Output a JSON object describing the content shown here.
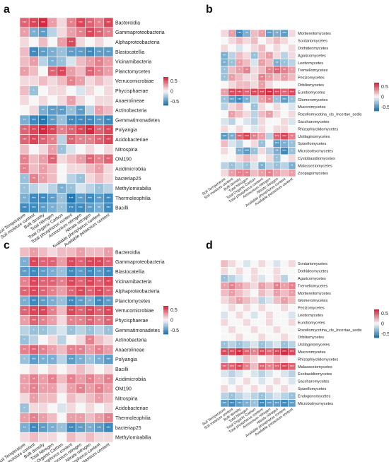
{
  "chart_data": [
    {
      "panel": "a",
      "type": "heatmap",
      "legend": {
        "ticks": [
          "0.5",
          "0",
          "-0.5"
        ]
      },
      "columns": [
        "Soil Temperature",
        "Soil moisture content",
        "Bulk density",
        "Total Nitrogen",
        "Total Organic Carbon",
        "Total phosphorus content",
        "Ammonium nitrogen",
        "Nitrate nitrogen",
        "Available phosphorus content",
        "Available potassium content"
      ],
      "rows": [
        "Bacteroidia",
        "Gammaproteobacteria",
        "Alphaproteobacteria",
        "Blastocatellia",
        "Vicinamibacteria",
        "Planctomycetes",
        "Verrucomicrobiae",
        "Phycisphaerae",
        "Anaerolineae",
        "Actinobacteria",
        "Gemmatimonadetes",
        "Polyangia",
        "Acidobacteriae",
        "Nitrospiria",
        "OM190",
        "Acidimicrobiia",
        "bacteriap25",
        "Methylomirabilia",
        "Thermoleophilia",
        "Bacilli"
      ],
      "values": [
        [
          0.5,
          0.6,
          0.7,
          0.3,
          0.1,
          0.4,
          0.6,
          0.5,
          0.4,
          0.6
        ],
        [
          0.3,
          -0.4,
          -0.5,
          -0.2,
          0.1,
          0.3,
          0.4,
          0.6,
          0.5,
          0.4
        ],
        [
          0.1,
          0.0,
          0.2,
          0.0,
          0.3,
          0.6,
          0.1,
          0.0,
          0.1,
          0.0
        ],
        [
          0.2,
          -0.6,
          -0.5,
          -0.4,
          -0.3,
          -0.5,
          -0.5,
          -0.6,
          -0.5,
          -0.5
        ],
        [
          0.2,
          0.3,
          -0.2,
          -0.4,
          -0.3,
          -0.1,
          0.2,
          0.3,
          0.4,
          0.3
        ],
        [
          0.3,
          0.2,
          0.0,
          0.5,
          0.6,
          0.3,
          0.2,
          0.5,
          0.4,
          0.3
        ],
        [
          0.1,
          0.1,
          0.2,
          0.1,
          0.2,
          0.4,
          0.3,
          0.1,
          0.2,
          0.1
        ],
        [
          0.2,
          -0.3,
          0.0,
          0.1,
          0.1,
          0.0,
          -0.1,
          0.1,
          0.0,
          0.1
        ],
        [
          0.1,
          0.0,
          0.1,
          0.0,
          0.1,
          0.3,
          0.1,
          0.0,
          0.1,
          0.1
        ],
        [
          0.0,
          0.1,
          -0.4,
          -0.5,
          -0.5,
          -0.3,
          -0.5,
          -0.2,
          0.3,
          0.2
        ],
        [
          -0.4,
          -0.6,
          -0.7,
          -0.5,
          -0.3,
          -0.6,
          -0.6,
          -0.6,
          -0.5,
          -0.6
        ],
        [
          0.5,
          0.6,
          0.7,
          0.6,
          0.4,
          0.5,
          0.6,
          0.7,
          0.5,
          0.6
        ],
        [
          0.5,
          0.6,
          0.5,
          0.4,
          -0.2,
          0.5,
          0.4,
          0.4,
          0.5,
          0.6
        ],
        [
          0.2,
          0.0,
          0.1,
          0.3,
          -0.3,
          -0.1,
          0.0,
          0.1,
          0.0,
          0.1
        ],
        [
          0.4,
          0.2,
          0.3,
          0.5,
          0.1,
          0.2,
          0.3,
          0.5,
          0.4,
          0.5
        ],
        [
          0.4,
          0.2,
          0.3,
          0.2,
          0.0,
          0.1,
          0.1,
          0.2,
          0.3,
          0.1
        ],
        [
          -0.3,
          0.4,
          0.3,
          0.2,
          0.0,
          -0.2,
          -0.3,
          0.1,
          0.2,
          0.1
        ],
        [
          -0.3,
          -0.2,
          -0.1,
          -0.2,
          -0.4,
          -0.3,
          -0.1,
          -0.2,
          -0.3,
          -0.2
        ],
        [
          -0.4,
          -0.6,
          -0.6,
          -0.5,
          -0.3,
          -0.7,
          -0.5,
          -0.6,
          -0.5,
          -0.6
        ],
        [
          -0.6,
          -0.6,
          -0.5,
          -0.4,
          -0.3,
          -0.6,
          -0.6,
          -0.5,
          -0.4,
          -0.6
        ]
      ]
    },
    {
      "panel": "b",
      "type": "heatmap",
      "legend": {
        "ticks": [
          "0.5",
          "0",
          "-0.5"
        ]
      },
      "columns": [
        "Soil Temperature",
        "Soil moisture content",
        "Bulk density",
        "Total Nitrogen",
        "Total Organic Carbon",
        "Total phosphorus content",
        "Ammonium nitrogen",
        "Nitrate nitrogen",
        "Available phosphorus content",
        "Available potassium content"
      ],
      "rows": [
        "Mortierellomycetes",
        "Sordariomycetes",
        "Dothideomycetes",
        "Agaricomycetes",
        "Leotiomycetes",
        "Tremellomycetes",
        "Pezizomycetes",
        "Orbiliomycetes",
        "Eurotiomycetes",
        "Glomeromycetes",
        "Mucoromycetes",
        "Rozellomycotina_cls_Incertae_sedis",
        "Saccharomycetes",
        "Rhizophlyctidomycetes",
        "Ustilaginomycetes",
        "Spizellomycetes",
        "Microbotryomycetes",
        "Cystobasidiomycetes",
        "Malasseziomycetes",
        "Zoopagomycetes"
      ],
      "values": [
        [
          0.1,
          0.3,
          -0.6,
          -0.4,
          0.2,
          0.3,
          -0.5,
          -0.4,
          -0.5,
          0.1
        ],
        [
          0.0,
          0.1,
          0.2,
          0.1,
          0.2,
          0.0,
          0.1,
          0.2,
          0.1,
          0.0
        ],
        [
          0.1,
          0.0,
          -0.1,
          0.0,
          0.1,
          0.2,
          0.0,
          0.1,
          0.0,
          0.1
        ],
        [
          -0.4,
          -0.2,
          0.2,
          0.1,
          -0.3,
          0.2,
          0.3,
          0.1,
          -0.2,
          0.1
        ],
        [
          -0.4,
          -0.3,
          0.3,
          0.2,
          -0.1,
          0.3,
          0.2,
          -0.4,
          -0.3,
          -0.2
        ],
        [
          -0.3,
          0.2,
          0.3,
          0.4,
          0.1,
          0.2,
          0.4,
          0.5,
          0.4,
          0.3
        ],
        [
          -0.3,
          0.3,
          0.2,
          0.1,
          0.1,
          0.4,
          0.3,
          0.2,
          0.3,
          0.2
        ],
        [
          0.0,
          0.1,
          0.2,
          0.2,
          0.1,
          0.3,
          0.1,
          0.0,
          0.0,
          0.0
        ],
        [
          0.3,
          0.6,
          0.6,
          0.5,
          0.6,
          0.6,
          0.7,
          0.6,
          0.5,
          0.6
        ],
        [
          -0.3,
          -0.5,
          -0.6,
          -0.4,
          -0.2,
          0.3,
          0.4,
          -0.3,
          -0.5,
          -0.3
        ],
        [
          -0.2,
          0.1,
          0.2,
          0.0,
          -0.3,
          0.1,
          0.0,
          0.1,
          0.0,
          -0.1
        ],
        [
          0.0,
          0.3,
          0.2,
          0.1,
          -0.2,
          0.2,
          0.3,
          0.1,
          0.0,
          0.1
        ],
        [
          -0.1,
          -0.2,
          0.0,
          -0.1,
          -0.2,
          0.1,
          0.0,
          0.0,
          0.1,
          -0.1
        ],
        [
          0.1,
          0.0,
          0.1,
          0.0,
          -0.1,
          0.1,
          0.0,
          0.1,
          0.1,
          0.0
        ],
        [
          -0.5,
          -0.4,
          0.5,
          0.6,
          0.4,
          0.3,
          -0.2,
          0.5,
          0.6,
          0.4
        ],
        [
          0.2,
          -0.1,
          -0.2,
          0.0,
          0.1,
          -0.3,
          0.0,
          -0.5,
          -0.4,
          -0.3
        ],
        [
          0.1,
          0.0,
          -0.4,
          -0.5,
          -0.3,
          0.1,
          -0.2,
          -0.4,
          -0.6,
          -0.3
        ],
        [
          0.0,
          0.0,
          0.1,
          0.2,
          0.1,
          0.0,
          0.1,
          -0.3,
          0.0,
          0.1
        ],
        [
          -0.2,
          -0.3,
          -0.2,
          -0.3,
          -0.1,
          -0.4,
          -0.2,
          -0.3,
          -0.2,
          -0.4
        ],
        [
          0.1,
          0.3,
          0.4,
          0.4,
          0.2,
          0.3,
          0.4,
          0.3,
          0.2,
          0.3
        ]
      ]
    },
    {
      "panel": "c",
      "type": "heatmap",
      "legend": {
        "ticks": [
          "0.5",
          "0",
          "-0.5"
        ]
      },
      "columns": [
        "Soil Temperature",
        "Soil moisture content",
        "Bulk density",
        "Total Nitrogen",
        "Total Organic Carbon",
        "Total phosphorus content",
        "Ammonium nitrogen",
        "Nitrate nitrogen",
        "Available phosphorus content",
        "Available potassium content"
      ],
      "rows": [
        "Bacteroidia",
        "Gammaproteobacteria",
        "Blastocatellia",
        "Vicinamibacteria",
        "Alphaproteobacteria",
        "Planctomycetes",
        "Verrucomicrobiae",
        "Phycisphaerae",
        "Gemmatimonadetes",
        "Actinobacteria",
        "Anaerolineae",
        "Polyangia",
        "Bacilli",
        "Acidimicrobiia",
        "OM190",
        "Nitrospiria",
        "Acidobacteriae",
        "Thermoleophilia",
        "bacteriap25",
        "Methylomirabilia"
      ],
      "values": [
        [
          0.2,
          0.3,
          0.2,
          0.1,
          0.2,
          0.2,
          0.3,
          0.2,
          0.2,
          0.3
        ],
        [
          -0.4,
          0.6,
          0.5,
          0.5,
          0.3,
          0.6,
          0.5,
          0.6,
          0.6,
          0.5
        ],
        [
          -0.5,
          -0.6,
          -0.5,
          -0.4,
          -0.3,
          -0.6,
          -0.5,
          -0.6,
          -0.5,
          -0.6
        ],
        [
          0.4,
          0.6,
          0.5,
          0.5,
          0.4,
          0.6,
          0.5,
          0.6,
          0.5,
          0.6
        ],
        [
          0.5,
          0.6,
          0.5,
          0.4,
          0.3,
          0.5,
          0.6,
          0.5,
          0.6,
          0.5
        ],
        [
          -0.4,
          -0.6,
          -0.5,
          -0.4,
          -0.3,
          -0.6,
          -0.5,
          -0.4,
          -0.6,
          -0.5
        ],
        [
          0.5,
          0.6,
          0.6,
          0.4,
          0.2,
          0.6,
          0.5,
          0.6,
          0.5,
          0.6
        ],
        [
          0.3,
          0.5,
          0.4,
          0.3,
          0.1,
          0.4,
          0.4,
          0.5,
          0.4,
          0.5
        ],
        [
          -0.2,
          -0.3,
          -0.3,
          -0.2,
          -0.1,
          -0.3,
          -0.2,
          -0.3,
          -0.2,
          -0.3
        ],
        [
          -0.3,
          -0.2,
          0.0,
          0.1,
          -0.2,
          0.0,
          0.1,
          0.4,
          0.2,
          0.1
        ],
        [
          0.4,
          0.5,
          0.4,
          0.3,
          0.2,
          0.4,
          0.4,
          0.3,
          0.4,
          0.3
        ],
        [
          -0.3,
          -0.5,
          -0.4,
          -0.4,
          -0.2,
          -0.5,
          -0.4,
          -0.3,
          -0.4,
          -0.5
        ],
        [
          0.0,
          0.1,
          0.0,
          0.1,
          0.0,
          0.1,
          0.2,
          0.1,
          0.0,
          0.1
        ],
        [
          0.3,
          0.4,
          0.3,
          0.4,
          0.2,
          0.4,
          0.3,
          0.4,
          0.3,
          0.4
        ],
        [
          0.3,
          0.4,
          0.3,
          0.3,
          0.1,
          0.3,
          0.4,
          0.3,
          0.4,
          0.3
        ],
        [
          0.1,
          0.3,
          0.2,
          0.2,
          0.0,
          0.2,
          0.1,
          0.2,
          0.3,
          0.2
        ],
        [
          -0.3,
          0.1,
          0.1,
          0.0,
          -0.1,
          0.1,
          0.0,
          0.1,
          0.0,
          0.1
        ],
        [
          0.3,
          0.4,
          0.3,
          0.2,
          0.0,
          0.3,
          0.3,
          0.2,
          0.3,
          0.4
        ],
        [
          -0.4,
          -0.6,
          -0.5,
          -0.4,
          -0.3,
          -0.6,
          -0.5,
          -0.4,
          -0.5,
          -0.6
        ],
        [
          0.1,
          0.2,
          0.1,
          0.1,
          0.0,
          0.2,
          0.1,
          0.2,
          0.1,
          0.1
        ]
      ]
    },
    {
      "panel": "d",
      "type": "heatmap",
      "legend": {
        "ticks": [
          "0.5",
          "0",
          "-0.5"
        ]
      },
      "columns": [
        "Soil Temperature",
        "Soil moisture content",
        "Bulk density",
        "Total Nitrogen",
        "Total Organic Carbon",
        "Total phosphorus content",
        "Ammonium nitrogen",
        "Nitrate nitrogen",
        "Available phosphorus content",
        "Available potassium content"
      ],
      "rows": [
        "Sordariomycetes",
        "Dothideomycetes",
        "Agaricomycetes",
        "Tremellomycetes",
        "Mortierellomycetes",
        "Glomeromycetes",
        "Pezizomycetes",
        "Leotiomycetes",
        "Eurotiomycetes",
        "Rozellomycotina_cls_Incertae_sedis",
        "Orbiliomycetes",
        "Ustilaginomycetes",
        "Mucoromycetes",
        "Rhizophlyctidomycetes",
        "Malasseziomycetes",
        "Exobasidiomycetes",
        "Saccharomycetes",
        "Spizellomycetes",
        "Endogonomycetes",
        "Microbotryomycetes"
      ],
      "values": [
        [
          0.2,
          0.1,
          0.0,
          -0.1,
          0.0,
          0.1,
          0.0,
          -0.1,
          0.0,
          0.1
        ],
        [
          0.1,
          0.0,
          0.1,
          0.0,
          0.1,
          0.0,
          0.0,
          0.1,
          0.0,
          0.0
        ],
        [
          -0.3,
          -0.2,
          -0.1,
          0.0,
          0.1,
          -0.1,
          0.0,
          0.1,
          -0.2,
          0.0
        ],
        [
          0.3,
          0.4,
          0.3,
          0.2,
          0.1,
          0.3,
          0.2,
          0.4,
          0.3,
          0.4
        ],
        [
          0.2,
          0.3,
          0.2,
          0.1,
          0.0,
          0.2,
          0.1,
          0.3,
          0.2,
          0.3
        ],
        [
          0.1,
          0.2,
          0.3,
          0.2,
          0.1,
          -0.2,
          -0.1,
          0.2,
          0.3,
          0.2
        ],
        [
          0.0,
          0.1,
          0.0,
          0.1,
          0.0,
          0.1,
          0.0,
          0.0,
          0.1,
          0.0
        ],
        [
          -0.1,
          0.0,
          0.1,
          0.0,
          -0.1,
          0.0,
          0.1,
          0.0,
          0.0,
          -0.1
        ],
        [
          0.1,
          0.0,
          0.0,
          0.1,
          0.0,
          0.0,
          0.1,
          0.0,
          0.0,
          0.1
        ],
        [
          0.0,
          0.1,
          0.0,
          0.0,
          0.1,
          0.0,
          0.0,
          0.1,
          0.0,
          0.0
        ],
        [
          0.0,
          0.0,
          0.1,
          0.0,
          0.0,
          0.1,
          0.0,
          0.0,
          0.1,
          0.0
        ],
        [
          -0.3,
          -0.2,
          -0.3,
          -0.2,
          -0.1,
          -0.3,
          -0.2,
          -0.1,
          -0.3,
          -0.2
        ],
        [
          0.6,
          0.6,
          0.7,
          0.5,
          0.4,
          0.6,
          0.5,
          0.6,
          0.7,
          0.6
        ],
        [
          -0.2,
          0.0,
          -0.1,
          0.2,
          0.1,
          0.0,
          0.1,
          0.2,
          0.1,
          0.0
        ],
        [
          0.5,
          0.5,
          0.6,
          0.4,
          0.2,
          0.5,
          0.4,
          0.5,
          0.6,
          0.5
        ],
        [
          -0.1,
          -0.2,
          -0.1,
          0.0,
          -0.1,
          -0.2,
          -0.1,
          0.0,
          -0.1,
          -0.2
        ],
        [
          0.0,
          -0.1,
          0.0,
          0.1,
          0.0,
          -0.1,
          0.0,
          0.1,
          0.0,
          -0.1
        ],
        [
          0.1,
          0.0,
          0.1,
          0.0,
          0.1,
          0.0,
          0.1,
          0.0,
          0.1,
          0.0
        ],
        [
          -0.2,
          -0.3,
          -0.2,
          -0.1,
          -0.2,
          -0.3,
          -0.2,
          -0.1,
          -0.2,
          -0.3
        ],
        [
          -0.5,
          -0.6,
          -0.5,
          -0.4,
          -0.3,
          -0.6,
          -0.5,
          -0.5,
          -0.6,
          -0.5
        ]
      ]
    }
  ],
  "colors": {
    "positive": "#d6283e",
    "neutral": "#f7f7f7",
    "negative": "#1f78b4"
  }
}
